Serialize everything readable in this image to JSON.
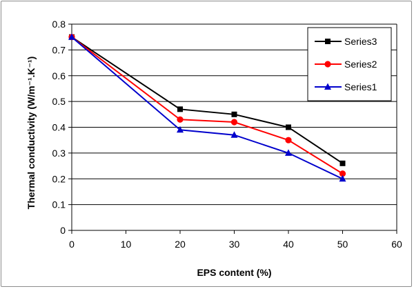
{
  "chart_data": {
    "type": "line",
    "xlabel": "EPS content (%)",
    "ylabel": "Thermal conductivity (W/m⁻¹.K⁻¹)",
    "xlim": [
      0,
      60
    ],
    "ylim": [
      0,
      0.8
    ],
    "x_ticks": [
      "0",
      "10",
      "20",
      "30",
      "40",
      "50",
      "60"
    ],
    "y_ticks": [
      "0",
      "0.1",
      "0.2",
      "0.3",
      "0.4",
      "0.5",
      "0.6",
      "0.7",
      "0.8"
    ],
    "grid": "horizontal",
    "legend_position": "top-right",
    "x": [
      0,
      20,
      30,
      40,
      50
    ],
    "series": [
      {
        "name": "Series3",
        "color": "#000000",
        "marker": "square",
        "values": [
          0.75,
          0.47,
          0.45,
          0.4,
          0.26
        ]
      },
      {
        "name": "Series2",
        "color": "#ff0000",
        "marker": "circle",
        "values": [
          0.75,
          0.43,
          0.42,
          0.35,
          0.22
        ]
      },
      {
        "name": "Series1",
        "color": "#0000cc",
        "marker": "triangle",
        "values": [
          0.75,
          0.39,
          0.37,
          0.3,
          0.2
        ]
      }
    ]
  }
}
